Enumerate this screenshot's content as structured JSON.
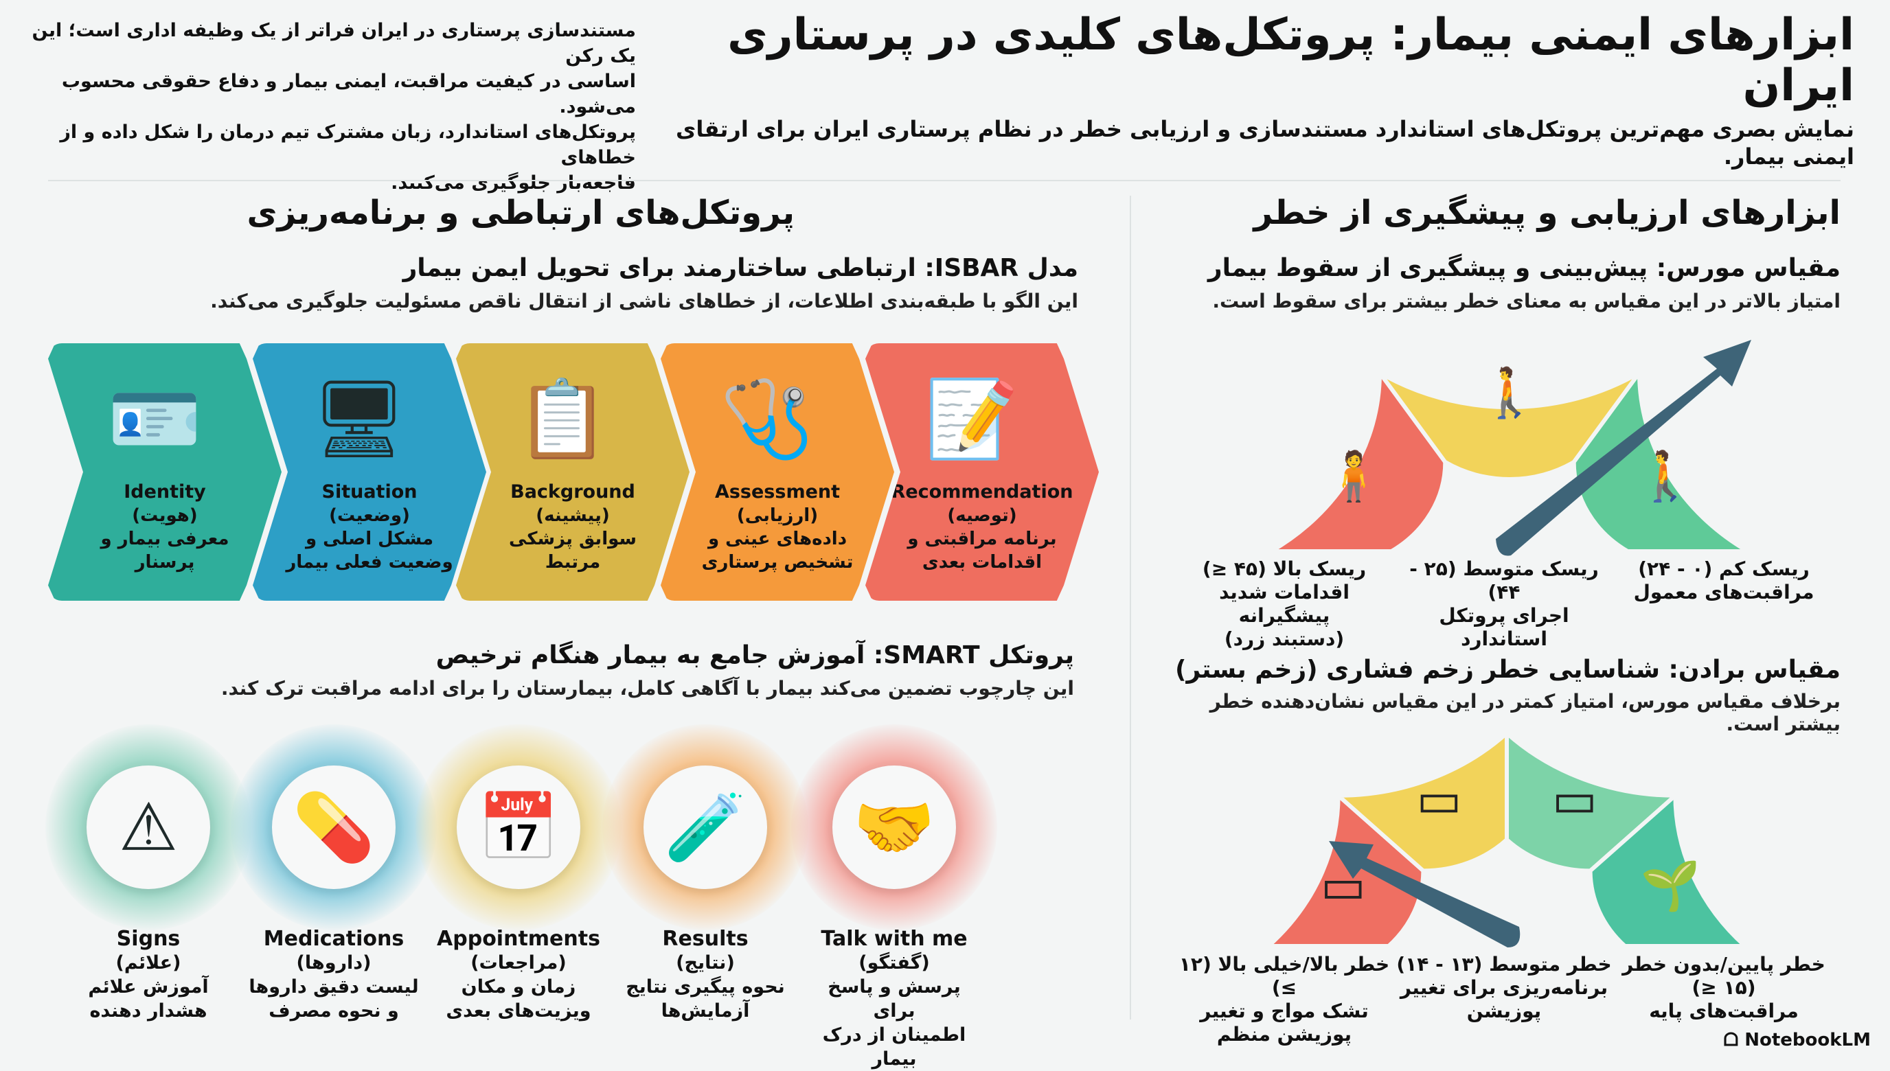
{
  "header": {
    "title": "ابزارهای ایمنی بیمار: پروتکل‌های کلیدی در پرستاری ایران",
    "subtitle": "نمایش بصری مهم‌ترین پروتکل‌های استاندارد مستندسازی و ارزیابی خطر در نظام پرستاری ایران برای ارتقای ایمنی بیمار.",
    "intro_lines": [
      "مستندسازی پرستاری در ایران فراتر از یک وظیفه اداری است؛ این یک رکن",
      "اساسی در کیفیت مراقبت، ایمنی بیمار و دفاع حقوقی محسوب می‌شود.",
      "پروتکل‌های استاندارد، زبان مشترک تیم درمان را شکل داده و از خطاهای",
      "فاجعه‌بار جلوگیری می‌کنند."
    ]
  },
  "left": {
    "heading": "پروتکل‌های ارتباطی و برنامه‌ریزی",
    "isbar": {
      "title": "مدل ISBAR: ارتباطی ساختارمند برای تحویل ایمن بیمار",
      "desc": "این الگو با طبقه‌بندی اطلاعات، از خطاهای ناشی از انتقال ناقص مسئولیت جلوگیری می‌کند.",
      "steps": [
        {
          "en": "Identity",
          "fa": "(هویت)",
          "d1": "معرفی بیمار و",
          "d2": "پرسنار",
          "icon": "id-card-icon",
          "color": "#2fae9b",
          "glyph": "🪪"
        },
        {
          "en": "Situation",
          "fa": "(وضعیت)",
          "d1": "مشکل اصلی و",
          "d2": "وضعیت فعلی بیمار",
          "icon": "monitor-heart-icon",
          "color": "#2d9fc6",
          "glyph": "🖥"
        },
        {
          "en": "Background",
          "fa": "(پیشینه)",
          "d1": "سوابق پزشکی",
          "d2": "مرتبط",
          "icon": "document-check-icon",
          "color": "#d8b648",
          "glyph": "📋"
        },
        {
          "en": "Assessment",
          "fa": "(ارزیابی)",
          "d1": "داده‌های عینی و",
          "d2": "تشخیص پرستاری",
          "icon": "stethoscope-icon",
          "color": "#f59a3b",
          "glyph": "🩺"
        },
        {
          "en": "Recommendation",
          "fa": "(توصیه)",
          "d1": "برنامه مراقبتی و",
          "d2": "اقدامات بعدی",
          "icon": "clipboard-hand-icon",
          "color": "#ef6e5f",
          "glyph": "📝"
        }
      ]
    },
    "smart": {
      "title": "پروتکل SMART: آموزش جامع به بیمار هنگام ترخیص",
      "desc": "این چارچوب تضمین می‌کند بیمار با آگاهی کامل، بیمارستان را برای ادامه مراقبت ترک کند.",
      "steps": [
        {
          "en": "Signs",
          "fa": "(علائم)",
          "d1": "آموزش علائم",
          "d2": "هشدار دهنده",
          "icon": "warning-person-icon",
          "color": "#9fd9c8",
          "glyph": "⚠"
        },
        {
          "en": "Medications",
          "fa": "(داروها)",
          "d1": "لیست دقیق داروها",
          "d2": "و نحوه مصرف",
          "icon": "pill-bottle-icon",
          "color": "#8fcfe0",
          "glyph": "💊"
        },
        {
          "en": "Appointments",
          "fa": "(مراجعات)",
          "d1": "زمان و مکان",
          "d2": "ویزیت‌های بعدی",
          "icon": "calendar-clock-icon",
          "color": "#efdc9a",
          "glyph": "📅"
        },
        {
          "en": "Results",
          "fa": "(نتایج)",
          "d1": "نحوه پیگیری نتایج",
          "d2": "آزمایش‌ها",
          "icon": "test-tubes-icon",
          "color": "#f6c48f",
          "glyph": "🧪"
        },
        {
          "en": "Talk with me",
          "fa": "(گفتگو)",
          "d1": "پرسش و پاسخ برای",
          "d2": "اطمینان از درک بیمار",
          "icon": "handshake-chat-icon",
          "color": "#f4a9a2",
          "glyph": "🤝"
        }
      ]
    }
  },
  "right": {
    "heading": "ابزارهای ارزیابی و پیشگیری از خطر",
    "morse": {
      "title": "مقیاس مورس: پیش‌بینی و پیشگیری از سقوط بیمار",
      "desc": "امتیاز بالاتر در این مقیاس به معنای خطر بیشتر برای سقوط است.",
      "segments": [
        {
          "label": "ریسک بالا (۴۵ ≤)",
          "l2": "اقدامات شدید پیشگیرانه",
          "l3": "(دستبند زرد)",
          "color": "#ef6f62",
          "icon": "person-falling-icon"
        },
        {
          "label": "ریسک متوسط (۲۵ - ۴۴)",
          "l2": "اجرای پروتکل استاندارد",
          "color": "#f2d35a",
          "icon": "person-walking-icon"
        },
        {
          "label": "ریسک کم (۰ - ۲۴)",
          "l2": "مراقبت‌های معمول",
          "color": "#5fca98",
          "icon": "person-walking-steady-icon"
        }
      ],
      "needle_segment": "low"
    },
    "braden": {
      "title": "مقیاس برادن: شناسایی خطر زخم فشاری (زخم بستر)",
      "desc": "برخلاف مقیاس مورس، امتیاز کمتر در این مقیاس نشان‌دهنده خطر بیشتر است.",
      "segments": [
        {
          "label": "خطر بالا/خیلی بالا (۱۲ ≥)",
          "l2": "تشک مواج و تغییر",
          "l3": "پوزیشن منظم",
          "color": "#ef6f62",
          "icon": "deep-wound-icon"
        },
        {
          "label": "خطر متوسط (۱۳ - ۱۴)",
          "l2": "برنامه‌ریزی برای تغییر",
          "l3": "پوزیشن",
          "color": "#f2d35a",
          "icon": "skin-redness-icon"
        },
        {
          "color": "#7dd3a8",
          "icon": "skin-mild-icon"
        },
        {
          "label": "خطر پایین/بدون خطر (۱۵ ≤)",
          "l2": "مراقبت‌های پایه",
          "color": "#4cc3a0",
          "icon": "healthy-skin-icon"
        }
      ],
      "needle_segment": "high"
    }
  },
  "footer": {
    "brand": "NotebookLM"
  },
  "colors": {
    "needle": "#3e6478",
    "background": "#f3f5f5"
  }
}
